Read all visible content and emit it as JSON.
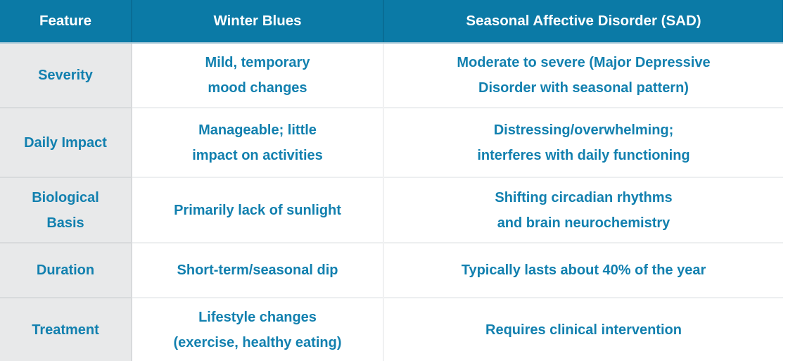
{
  "colors": {
    "header_bg": "#0b7aa6",
    "header_text": "#ffffff",
    "cell_text": "#1280af",
    "feature_column_bg": "#e8e9ea",
    "body_bg": "#ffffff",
    "row_divider_gray": "#d8dadc",
    "row_divider_light": "#edeff0"
  },
  "chart_data": {
    "type": "table",
    "columns": [
      "Feature",
      "Winter Blues",
      "Seasonal Affective Disorder (SAD)"
    ],
    "rows": [
      [
        "Severity",
        "Mild, temporary\nmood changes",
        "Moderate to severe (Major Depressive\nDisorder with seasonal pattern)"
      ],
      [
        "Daily Impact",
        "Manageable; little\nimpact on activities",
        "Distressing/overwhelming;\ninterferes with daily functioning"
      ],
      [
        "Biological\nBasis",
        "Primarily lack of sunlight",
        "Shifting circadian rhythms\nand brain neurochemistry"
      ],
      [
        "Duration",
        "Short-term/seasonal dip",
        "Typically lasts about 40% of the year"
      ],
      [
        "Treatment",
        "Lifestyle changes\n(exercise, healthy eating)",
        "Requires clinical intervention"
      ]
    ]
  }
}
